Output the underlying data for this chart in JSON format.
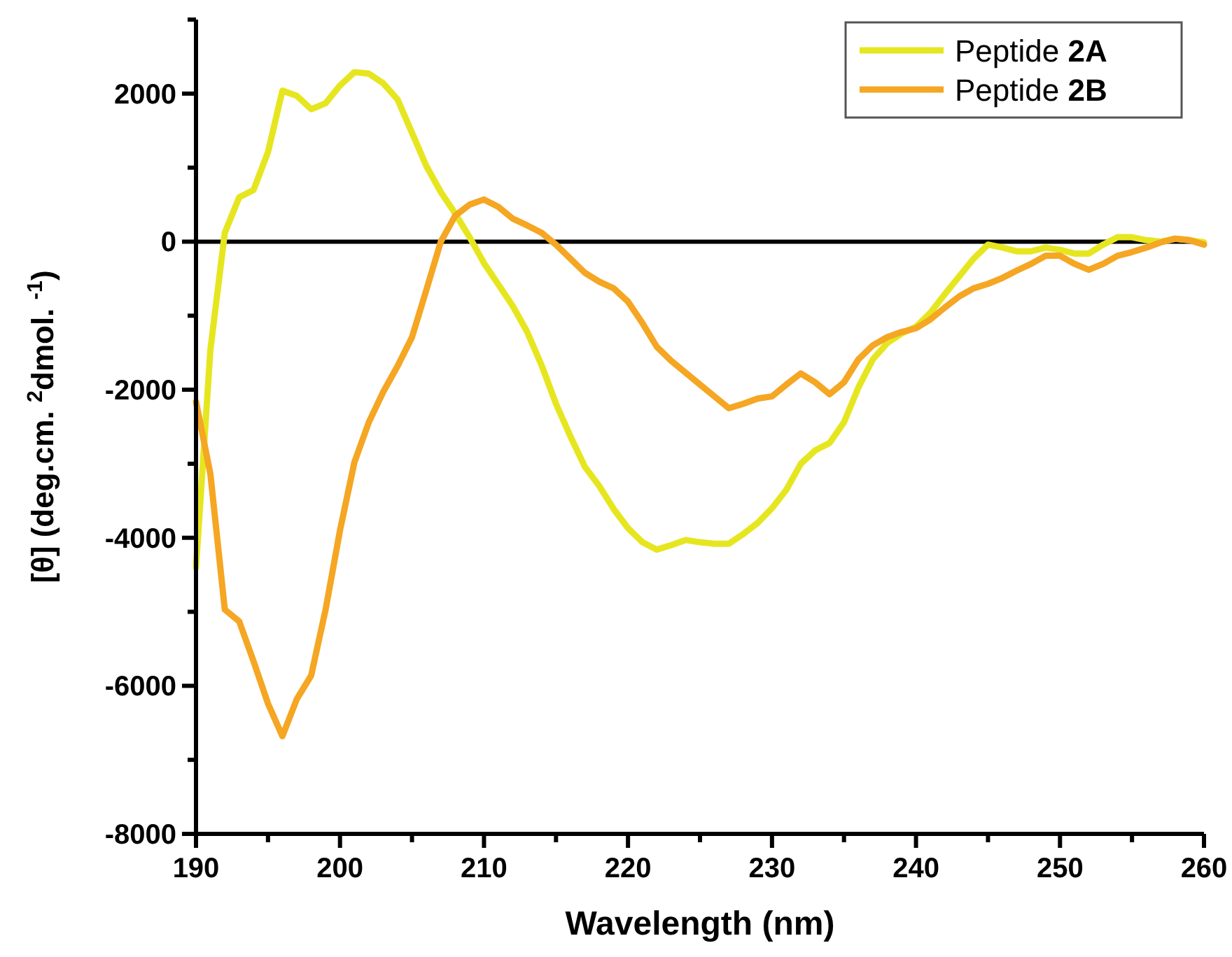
{
  "chart_data": {
    "type": "line",
    "xlabel": "Wavelength (nm)",
    "ylabel": "[θ] (deg.cm. $^{2}$dmol. $^{-1}$)",
    "x": [
      190,
      191,
      192,
      193,
      194,
      195,
      196,
      197,
      198,
      199,
      200,
      201,
      202,
      203,
      204,
      205,
      206,
      207,
      208,
      209,
      210,
      211,
      212,
      213,
      214,
      215,
      216,
      217,
      218,
      219,
      220,
      221,
      222,
      223,
      224,
      225,
      226,
      227,
      228,
      229,
      230,
      231,
      232,
      233,
      234,
      235,
      236,
      237,
      238,
      239,
      240,
      241,
      242,
      243,
      244,
      245,
      246,
      247,
      248,
      249,
      250,
      251,
      252,
      253,
      254,
      255,
      256,
      257,
      258,
      259,
      260
    ],
    "series": [
      {
        "name": "Peptide 2A",
        "color": "#e6e620",
        "values": [
          -4400,
          -1460,
          120,
          600,
          700,
          1210,
          2040,
          1970,
          1790,
          1870,
          2110,
          2290,
          2270,
          2140,
          1920,
          1470,
          1020,
          670,
          380,
          60,
          -290,
          -580,
          -870,
          -1220,
          -1670,
          -2190,
          -2630,
          -3040,
          -3300,
          -3610,
          -3870,
          -4060,
          -4160,
          -4100,
          -4030,
          -4060,
          -4080,
          -4080,
          -3950,
          -3800,
          -3600,
          -3350,
          -3000,
          -2820,
          -2720,
          -2440,
          -1970,
          -1590,
          -1370,
          -1240,
          -1150,
          -960,
          -710,
          -470,
          -230,
          -40,
          -80,
          -130,
          -130,
          -80,
          -110,
          -160,
          -160,
          -40,
          60,
          60,
          20,
          0,
          40,
          20,
          -10
        ]
      },
      {
        "name": "Peptide 2B",
        "color": "#f5a623",
        "values": [
          -2160,
          -3140,
          -4970,
          -5130,
          -5670,
          -6240,
          -6680,
          -6180,
          -5860,
          -4970,
          -3900,
          -2980,
          -2440,
          -2030,
          -1680,
          -1290,
          -650,
          0,
          350,
          500,
          570,
          470,
          310,
          220,
          120,
          -40,
          -230,
          -420,
          -540,
          -630,
          -810,
          -1100,
          -1420,
          -1610,
          -1770,
          -1930,
          -2090,
          -2250,
          -2190,
          -2120,
          -2090,
          -1930,
          -1780,
          -1900,
          -2060,
          -1900,
          -1590,
          -1400,
          -1290,
          -1220,
          -1170,
          -1050,
          -890,
          -740,
          -630,
          -570,
          -490,
          -390,
          -300,
          -190,
          -190,
          -300,
          -380,
          -300,
          -190,
          -140,
          -80,
          -10,
          40,
          20,
          -40
        ]
      }
    ],
    "xlim": [
      190,
      260
    ],
    "xticks": [
      190,
      {
        "value": 195,
        "label": null
      },
      200,
      {
        "value": 205,
        "label": null
      },
      210,
      {
        "value": 215,
        "label": null
      },
      220,
      {
        "value": 225,
        "label": null
      },
      230,
      {
        "value": 235,
        "label": null
      },
      240,
      {
        "value": 245,
        "label": null
      },
      250,
      {
        "value": 255,
        "label": null
      },
      260
    ],
    "ylim": [
      -8000,
      3000
    ],
    "yticks": [
      -8000,
      {
        "value": -7000,
        "label": null
      },
      -6000,
      {
        "value": -5000,
        "label": null
      },
      -4000,
      {
        "value": -3000,
        "label": null
      },
      -2000,
      {
        "value": -1000,
        "label": null
      },
      0,
      {
        "value": 1000,
        "label": null
      },
      2000,
      {
        "value": 3000,
        "label": null
      }
    ],
    "ref_lines": [
      {
        "axis": "y",
        "value": 0,
        "color": "#000000",
        "line_style": "solid"
      }
    ],
    "grid": false,
    "legend": "top right",
    "marker": "none",
    "line_style": "solid"
  }
}
